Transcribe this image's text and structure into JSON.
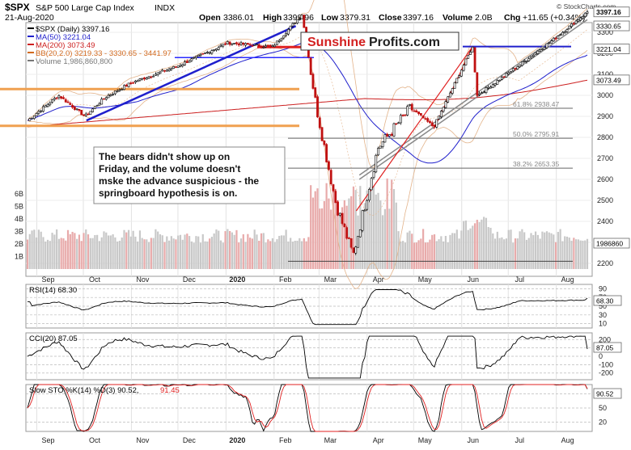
{
  "header": {
    "symbol": "$SPX",
    "name": "S&P 500 Large Cap Index",
    "exchange": "INDX",
    "date": "21-Aug-2020",
    "open_label": "Open",
    "open": "3386.01",
    "high_label": "High",
    "high": "3399.96",
    "low_label": "Low",
    "low": "3379.31",
    "close_label": "Close",
    "close": "3397.16",
    "volume_label": "Volume",
    "volume": "2.0B",
    "chg_label": "Chg",
    "chg": "+11.65 (+0.34%)",
    "watermark": "© StockCharts.com"
  },
  "logo": {
    "part1": "Sunshine",
    "part2": "Profits.com"
  },
  "annotation": "The bears didn't show up on Friday, and the volume doesn't mske the advance suspicious - the springboard hypothesis is on.",
  "legend": [
    {
      "label": "$SPX (Daily) 3397.16",
      "color": "#000000"
    },
    {
      "label": "MA(50) 3221.04",
      "color": "#1f1fcc"
    },
    {
      "label": "MA(200) 3073.49",
      "color": "#cc1f1f"
    },
    {
      "label": "BB(20,2.0) 3219.33 - 3330.65 - 3441.97",
      "color": "#d2691e"
    },
    {
      "label": "Volume 1,986,860,800",
      "color": "#777777"
    }
  ],
  "price_tags": [
    {
      "value": "3397.16",
      "bg": "#ffffff",
      "fg": "#000000"
    },
    {
      "value": "3330.65",
      "bg": "#ffffff",
      "fg": "#000000"
    },
    {
      "value": "3221.04",
      "bg": "#ffffff",
      "fg": "#000000"
    },
    {
      "value": "3073.49",
      "bg": "#ffffff",
      "fg": "#000000"
    },
    {
      "value": "1986860",
      "bg": "#ffffff",
      "fg": "#000000"
    }
  ],
  "fib_labels": [
    "61.8% 2938.47",
    "50.0% 2795.91",
    "38.2% 2653.35"
  ],
  "price_axis": [
    "2200",
    "2300",
    "2400",
    "2500",
    "2600",
    "2700",
    "2800",
    "2900",
    "3000",
    "3100",
    "3200",
    "3300"
  ],
  "volume_axis": [
    "6B",
    "5B",
    "4B",
    "3B",
    "2B",
    "1B"
  ],
  "months": [
    "Sep",
    "Oct",
    "Nov",
    "Dec",
    "2020",
    "Feb",
    "Mar",
    "Apr",
    "May",
    "Jun",
    "Jul",
    "Aug"
  ],
  "indicators": {
    "rsi": {
      "label": "RSI(14) 68.30",
      "value": "68.30",
      "ticks": [
        "90",
        "70",
        "50",
        "30",
        "10"
      ]
    },
    "cci": {
      "label": "CCI(20) 87.05",
      "value": "87.05",
      "ticks": [
        "200",
        "100",
        "0",
        "-100",
        "-200"
      ]
    },
    "sto": {
      "label_k": "Slow STO %K(14) %D(3) 90.52,",
      "label_d": "91.45",
      "value": "90.52",
      "ticks": [
        "80",
        "50",
        "20"
      ]
    }
  },
  "chart_data": {
    "type": "candlestick",
    "title": "$SPX S&P 500 Large Cap Index",
    "y_axis": {
      "min": 2200,
      "max": 3400,
      "scale": "linear"
    },
    "x_axis": {
      "start": "2019-08-26",
      "end": "2020-08-21"
    },
    "close_path": [
      [
        "2019-08-26",
        2880
      ],
      [
        "2019-09-15",
        3000
      ],
      [
        "2019-10-02",
        2900
      ],
      [
        "2019-10-15",
        2990
      ],
      [
        "2019-11-01",
        3060
      ],
      [
        "2019-12-01",
        3140
      ],
      [
        "2020-01-02",
        3250
      ],
      [
        "2020-01-31",
        3230
      ],
      [
        "2020-02-19",
        3386
      ],
      [
        "2020-02-28",
        2954
      ],
      [
        "2020-03-12",
        2480
      ],
      [
        "2020-03-23",
        2237
      ],
      [
        "2020-04-08",
        2750
      ],
      [
        "2020-04-29",
        2940
      ],
      [
        "2020-05-14",
        2850
      ],
      [
        "2020-06-08",
        3232
      ],
      [
        "2020-06-11",
        3000
      ],
      [
        "2020-06-30",
        3100
      ],
      [
        "2020-07-31",
        3271
      ],
      [
        "2020-08-21",
        3397
      ]
    ],
    "fib_levels": [
      {
        "name": "61.8%",
        "value": 2938.47
      },
      {
        "name": "50.0%",
        "value": 2795.91
      },
      {
        "name": "38.2%",
        "value": 2653.35
      }
    ],
    "ma50_last": 3221.04,
    "ma200_last": 3073.49,
    "bb": {
      "lower": 3219.33,
      "mid": 3330.65,
      "upper": 3441.97
    },
    "volume_last": 1986860800,
    "rsi_last": 68.3,
    "cci_last": 87.05,
    "sto_k_last": 90.52,
    "sto_d_last": 91.45
  }
}
